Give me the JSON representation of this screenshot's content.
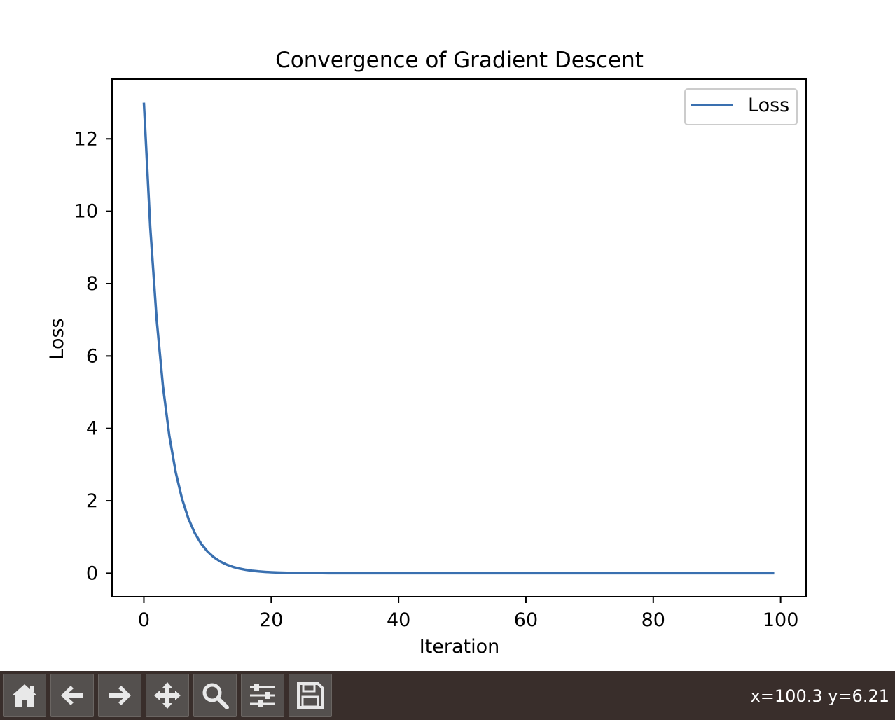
{
  "chart_data": {
    "type": "line",
    "title": "Convergence of Gradient Descent",
    "xlabel": "Iteration",
    "ylabel": "Loss",
    "xlim": [
      -5,
      104
    ],
    "ylim": [
      -0.65,
      13.65
    ],
    "xticks": [
      0,
      20,
      40,
      60,
      80,
      100
    ],
    "yticks": [
      0,
      2,
      4,
      6,
      8,
      10,
      12
    ],
    "grid": false,
    "legend_position": "top-right",
    "series": [
      {
        "name": "Loss",
        "color": "#3a70b0",
        "x": [
          0,
          1,
          2,
          3,
          4,
          5,
          6,
          7,
          8,
          9,
          10,
          11,
          12,
          13,
          14,
          15,
          16,
          17,
          18,
          19,
          20,
          21,
          22,
          23,
          24,
          25,
          26,
          27,
          28,
          29,
          30,
          31,
          32,
          33,
          34,
          35,
          36,
          37,
          38,
          39,
          40,
          41,
          42,
          43,
          44,
          45,
          46,
          47,
          48,
          49,
          50,
          51,
          52,
          53,
          54,
          55,
          56,
          57,
          58,
          59,
          60,
          61,
          62,
          63,
          64,
          65,
          66,
          67,
          68,
          69,
          70,
          71,
          72,
          73,
          74,
          75,
          76,
          77,
          78,
          79,
          80,
          81,
          82,
          83,
          84,
          85,
          86,
          87,
          88,
          89,
          90,
          91,
          92,
          93,
          94,
          95,
          96,
          97,
          98,
          99
        ],
        "y": [
          13.0,
          9.555,
          7.0229,
          5.1618,
          3.7939,
          2.7885,
          2.0495,
          1.5064,
          1.1072,
          0.8138,
          0.5981,
          0.4396,
          0.3231,
          0.2375,
          0.1746,
          0.1283,
          0.0943,
          0.0693,
          0.0509,
          0.0374,
          0.0275,
          0.0202,
          0.0149,
          0.0109,
          0.008,
          0.0059,
          0.0043,
          0.0032,
          0.0023,
          0.0017,
          0.0013,
          0.0009,
          0.0007,
          0.0005,
          0.0004,
          0.0003,
          0.0002,
          0.0001,
          0.0001,
          0.0001,
          0.0001,
          0,
          0,
          0,
          0,
          0,
          0,
          0,
          0,
          0,
          0,
          0,
          0,
          0,
          0,
          0,
          0,
          0,
          0,
          0,
          0,
          0,
          0,
          0,
          0,
          0,
          0,
          0,
          0,
          0,
          0,
          0,
          0,
          0,
          0,
          0,
          0,
          0,
          0,
          0,
          0,
          0,
          0,
          0,
          0,
          0,
          0,
          0,
          0,
          0,
          0,
          0,
          0,
          0,
          0,
          0,
          0,
          0,
          0,
          0
        ]
      }
    ]
  },
  "toolbar": {
    "buttons": [
      {
        "icon": "home-icon"
      },
      {
        "icon": "back-arrow-icon"
      },
      {
        "icon": "forward-arrow-icon"
      },
      {
        "icon": "pan-icon"
      },
      {
        "icon": "zoom-icon"
      },
      {
        "icon": "configure-subplots-icon"
      },
      {
        "icon": "save-icon"
      }
    ],
    "coordinates": "x=100.3 y=6.21"
  }
}
